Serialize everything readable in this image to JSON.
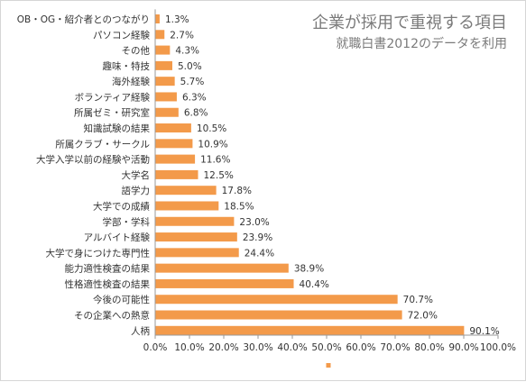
{
  "chart_data": {
    "type": "bar",
    "orientation": "horizontal",
    "title": "企業が採用で重視する項目",
    "subtitle": "就職白書2012のデータを利用",
    "categories": [
      "OB・OG・紹介者とのつながり",
      "パソコン経験",
      "その他",
      "趣味・特技",
      "海外経験",
      "ボランティア経験",
      "所属ゼミ・研究室",
      "知識試験の結果",
      "所属クラブ・サークル",
      "大学入学以前の経験や活動",
      "大学名",
      "語学力",
      "大学での成績",
      "学部・学科",
      "アルバイト経験",
      "大学で身につけた専門性",
      "能力適性検査の結果",
      "性格適性検査の結果",
      "今後の可能性",
      "その企業への熱意",
      "人柄"
    ],
    "values": [
      1.3,
      2.7,
      4.3,
      5.0,
      5.7,
      6.3,
      6.8,
      10.5,
      10.9,
      11.6,
      12.5,
      17.8,
      18.5,
      23.0,
      23.9,
      24.4,
      38.9,
      40.4,
      70.7,
      72.0,
      90.1
    ],
    "value_labels": [
      "1.3%",
      "2.7%",
      "4.3%",
      "5.0%",
      "5.7%",
      "6.3%",
      "6.8%",
      "10.5%",
      "10.9%",
      "11.6%",
      "12.5%",
      "17.8%",
      "18.5%",
      "23.0%",
      "23.9%",
      "24.4%",
      "38.9%",
      "40.4%",
      "70.7%",
      "72.0%",
      "90.1%"
    ],
    "x_ticks": [
      "0.0%",
      "10.0%",
      "20.0%",
      "30.0%",
      "40.0%",
      "50.0%",
      "60.0%",
      "70.0%",
      "80.0%",
      "90.0%",
      "100.0%"
    ],
    "xlim": [
      0,
      100
    ],
    "grid": false,
    "legend": "bottom-center",
    "bar_color": "#f39a4a",
    "text_color": "#333333",
    "axis_color": "#999999"
  }
}
